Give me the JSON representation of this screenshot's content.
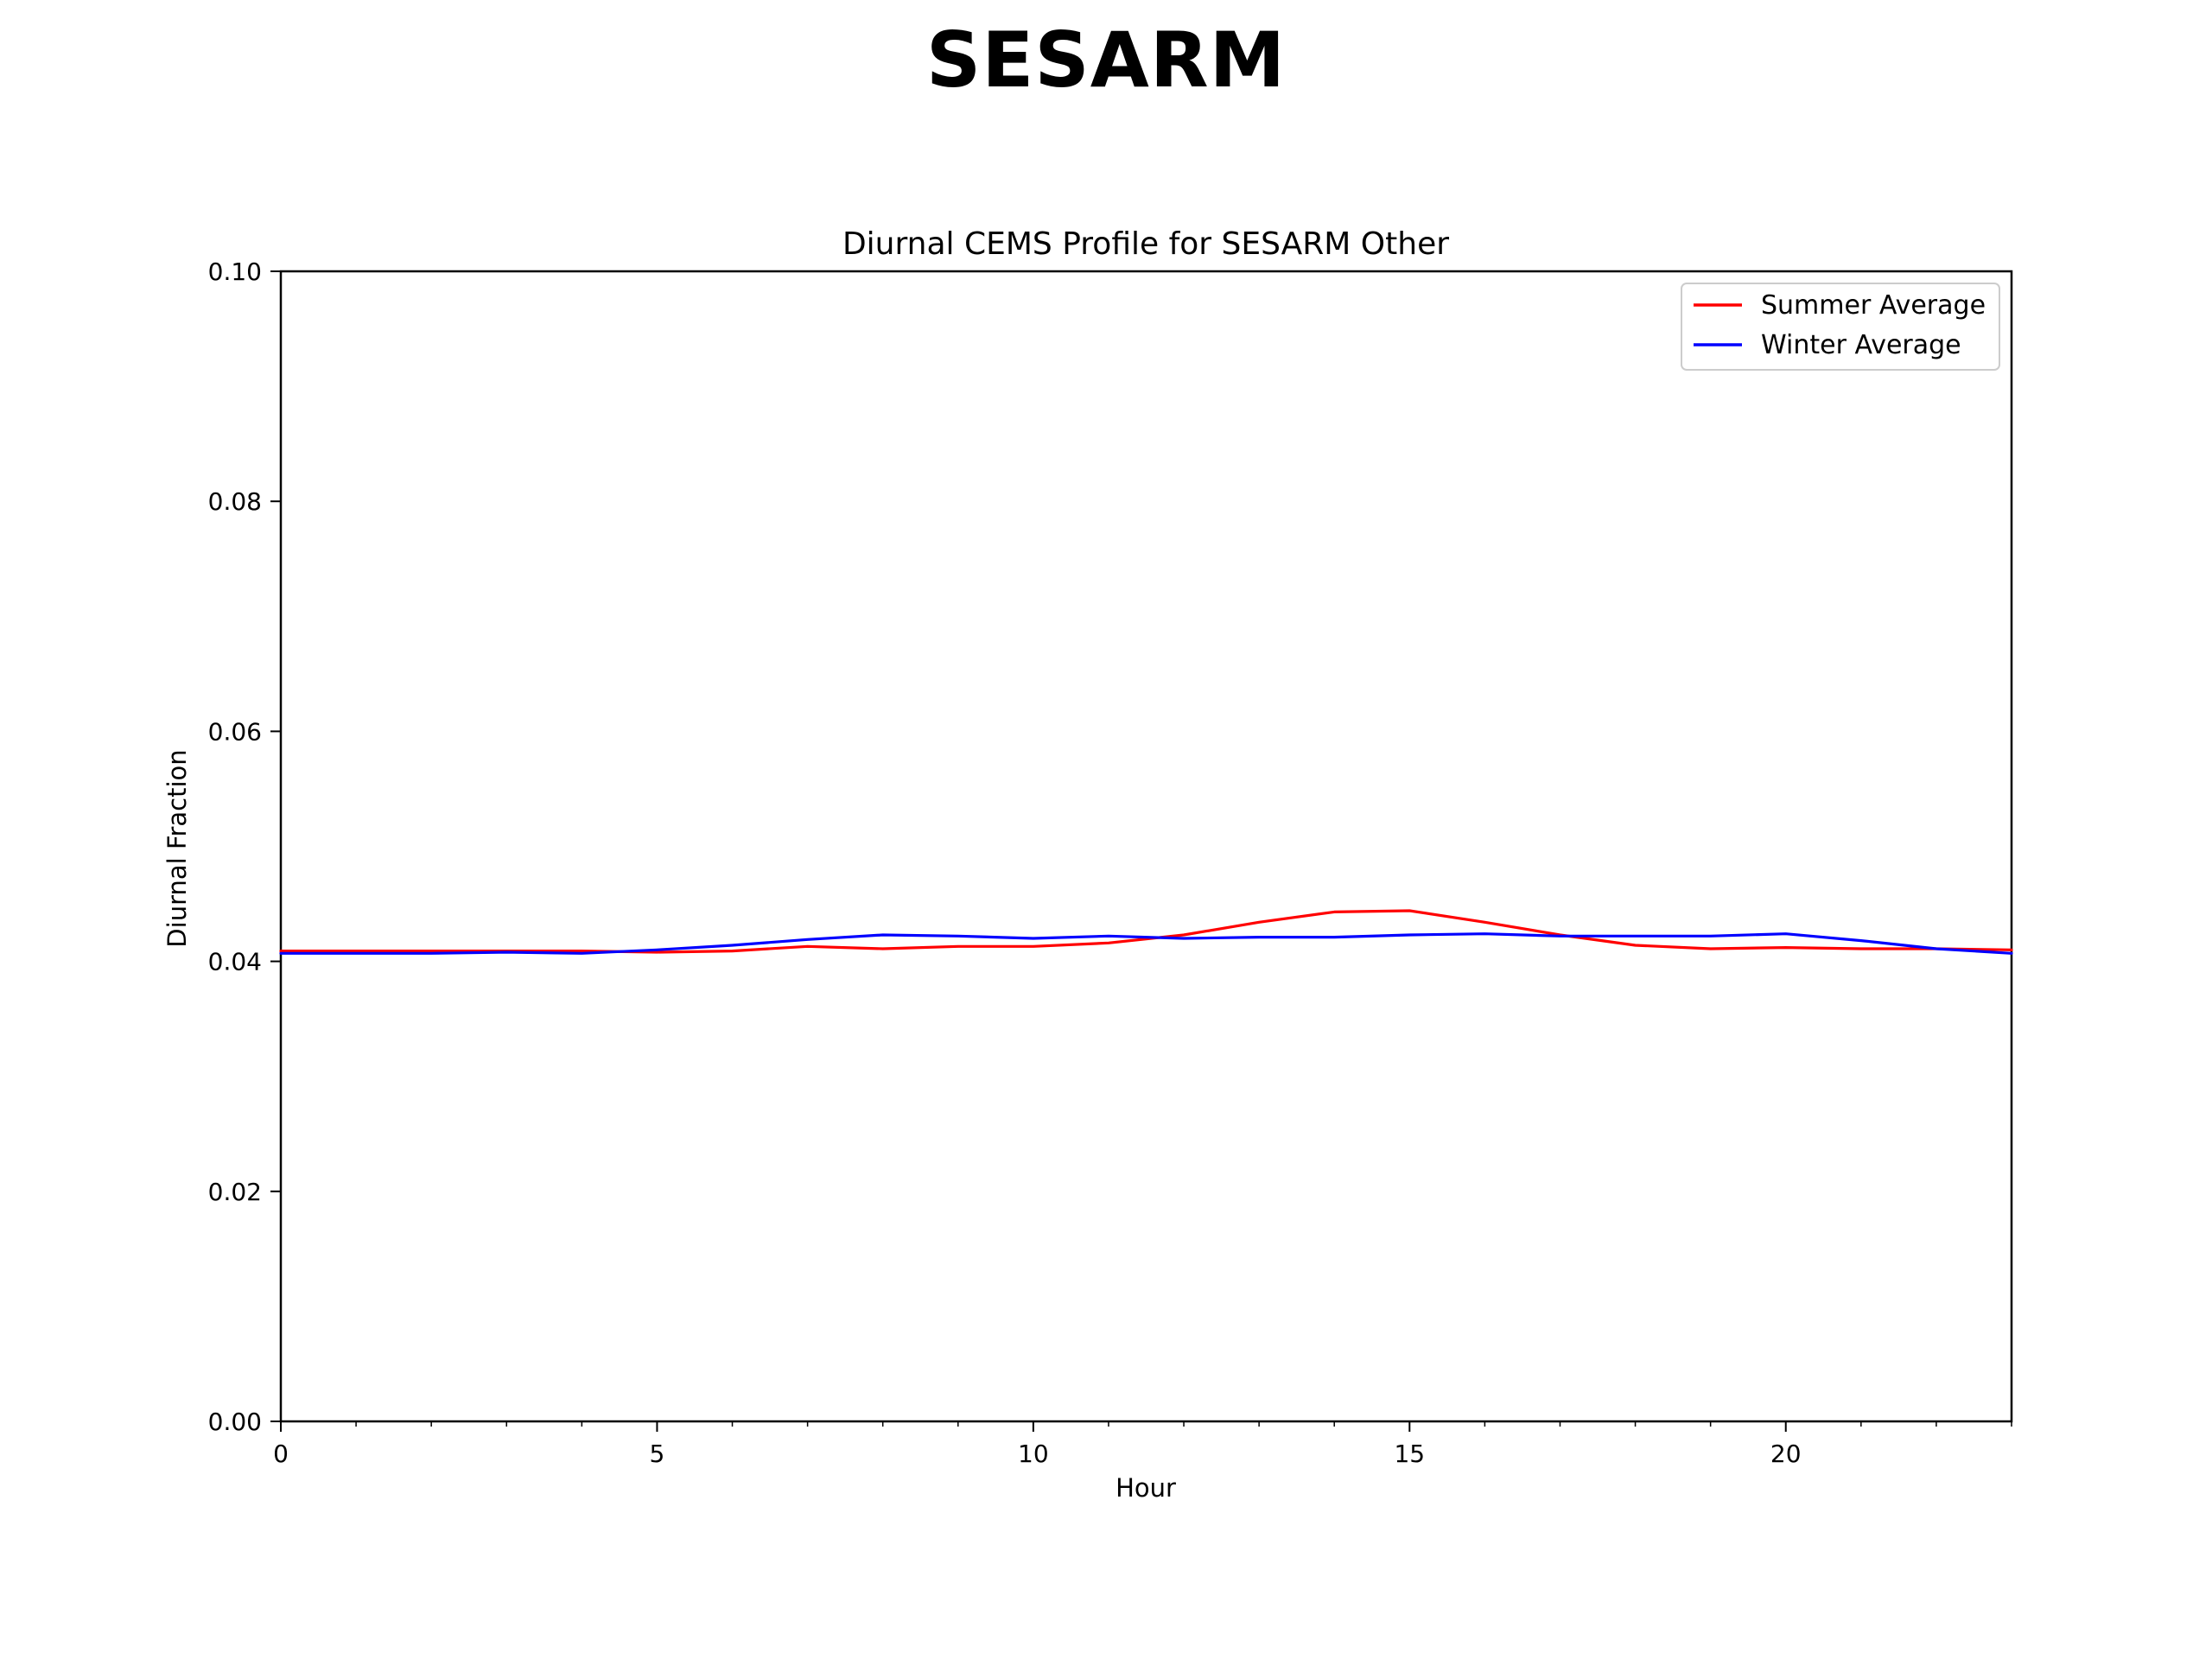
{
  "slide": {
    "title": "SESARM"
  },
  "chart_data": {
    "type": "line",
    "title": "Diurnal CEMS Profile for SESARM Other",
    "xlabel": "Hour",
    "ylabel": "Diurnal Fraction",
    "xlim": [
      0,
      23
    ],
    "ylim": [
      0,
      0.1
    ],
    "x_ticks": [
      0,
      5,
      10,
      15,
      20
    ],
    "y_ticks": [
      0.0,
      0.02,
      0.04,
      0.06,
      0.08,
      0.1
    ],
    "y_tick_labels": [
      "0.00",
      "0.02",
      "0.04",
      "0.06",
      "0.08",
      "0.10"
    ],
    "grid": false,
    "legend_position": "top-right",
    "x": [
      0,
      1,
      2,
      3,
      4,
      5,
      6,
      7,
      8,
      9,
      10,
      11,
      12,
      13,
      14,
      15,
      16,
      17,
      18,
      19,
      20,
      21,
      22,
      23
    ],
    "series": [
      {
        "name": "Summer Average",
        "color": "#ff0000",
        "values": [
          0.0409,
          0.0409,
          0.0409,
          0.0409,
          0.0409,
          0.0408,
          0.0409,
          0.0413,
          0.0411,
          0.0413,
          0.0413,
          0.0416,
          0.0423,
          0.0434,
          0.0443,
          0.0444,
          0.0434,
          0.0423,
          0.0414,
          0.0411,
          0.0412,
          0.0411,
          0.0411,
          0.041
        ]
      },
      {
        "name": "Winter Average",
        "color": "#0000ff",
        "values": [
          0.0407,
          0.0407,
          0.0407,
          0.0408,
          0.0407,
          0.041,
          0.0414,
          0.0419,
          0.0423,
          0.0422,
          0.042,
          0.0422,
          0.042,
          0.0421,
          0.0421,
          0.0423,
          0.0424,
          0.0422,
          0.0422,
          0.0422,
          0.0424,
          0.0418,
          0.0411,
          0.0407
        ]
      }
    ]
  }
}
